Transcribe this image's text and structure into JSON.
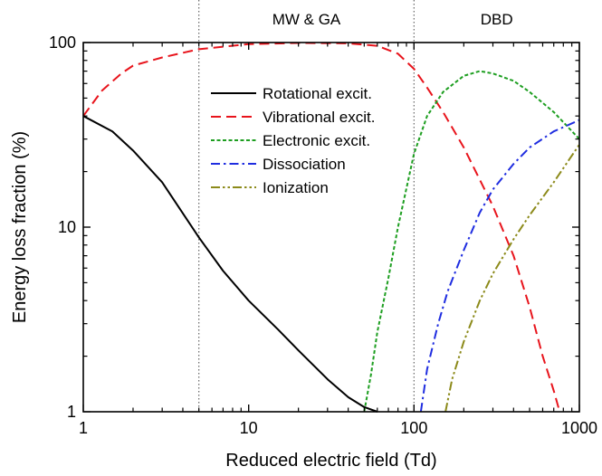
{
  "chart_data": {
    "type": "line",
    "xlabel": "Reduced electric field (Td)",
    "ylabel": "Energy loss fraction (%)",
    "xscale": "log",
    "yscale": "log",
    "xlim": [
      1,
      1000
    ],
    "ylim": [
      1,
      100
    ],
    "x_ticks": [
      1,
      10,
      100,
      1000
    ],
    "x_tick_labels": [
      "1",
      "10",
      "100",
      "1000"
    ],
    "y_ticks": [
      1,
      10,
      100
    ],
    "y_tick_labels": [
      "1",
      "10",
      "100"
    ],
    "grid": false,
    "legend_position": "top-center",
    "region_separators": [
      5,
      100
    ],
    "regions": [
      {
        "label": "MW & GA",
        "from": 5,
        "to": 100
      },
      {
        "label": "DBD",
        "from": 100,
        "to": 1000
      }
    ],
    "series": [
      {
        "name": "Rotational excit.",
        "color": "#000000",
        "dash": "solid",
        "points": [
          [
            1,
            40
          ],
          [
            1.5,
            33
          ],
          [
            2,
            26
          ],
          [
            3,
            17.5
          ],
          [
            5,
            8.8
          ],
          [
            7,
            5.8
          ],
          [
            10,
            4.0
          ],
          [
            15,
            2.8
          ],
          [
            20,
            2.15
          ],
          [
            30,
            1.5
          ],
          [
            40,
            1.2
          ],
          [
            50,
            1.06
          ],
          [
            60,
            1.0
          ]
        ]
      },
      {
        "name": "Vibrational excit.",
        "color": "#e8141c",
        "dash": "dashed",
        "points": [
          [
            1,
            40
          ],
          [
            1.3,
            55
          ],
          [
            1.7,
            68
          ],
          [
            2,
            75
          ],
          [
            3,
            83
          ],
          [
            5,
            92
          ],
          [
            10,
            98
          ],
          [
            20,
            99.5
          ],
          [
            40,
            99
          ],
          [
            60,
            96
          ],
          [
            80,
            87
          ],
          [
            100,
            72
          ],
          [
            120,
            57
          ],
          [
            150,
            42
          ],
          [
            200,
            27
          ],
          [
            300,
            13
          ],
          [
            400,
            7
          ],
          [
            500,
            3.7
          ],
          [
            600,
            2.0
          ],
          [
            700,
            1.3
          ],
          [
            760,
            1.0
          ]
        ]
      },
      {
        "name": "Electronic excit.",
        "color": "#1d9e20",
        "dash": "dotted",
        "points": [
          [
            50,
            1.0
          ],
          [
            55,
            1.6
          ],
          [
            60,
            2.7
          ],
          [
            70,
            5.3
          ],
          [
            80,
            10
          ],
          [
            100,
            25
          ],
          [
            120,
            40
          ],
          [
            150,
            54
          ],
          [
            200,
            66
          ],
          [
            250,
            70
          ],
          [
            300,
            68
          ],
          [
            400,
            62
          ],
          [
            500,
            54
          ],
          [
            700,
            42
          ],
          [
            1000,
            30
          ]
        ]
      },
      {
        "name": "Dissociation",
        "color": "#1f2de0",
        "dash": "dashdot",
        "points": [
          [
            110,
            1.0
          ],
          [
            120,
            1.7
          ],
          [
            140,
            3.0
          ],
          [
            160,
            4.5
          ],
          [
            200,
            7.5
          ],
          [
            250,
            12.0
          ],
          [
            300,
            16
          ],
          [
            400,
            22
          ],
          [
            500,
            27
          ],
          [
            700,
            33
          ],
          [
            1000,
            38
          ]
        ]
      },
      {
        "name": "Ionization",
        "color": "#8c8a1a",
        "dash": "dashdotdot",
        "points": [
          [
            155,
            1.0
          ],
          [
            170,
            1.5
          ],
          [
            200,
            2.4
          ],
          [
            250,
            4.0
          ],
          [
            300,
            5.6
          ],
          [
            400,
            8.6
          ],
          [
            500,
            11.6
          ],
          [
            700,
            17.5
          ],
          [
            1000,
            28
          ]
        ]
      }
    ]
  }
}
